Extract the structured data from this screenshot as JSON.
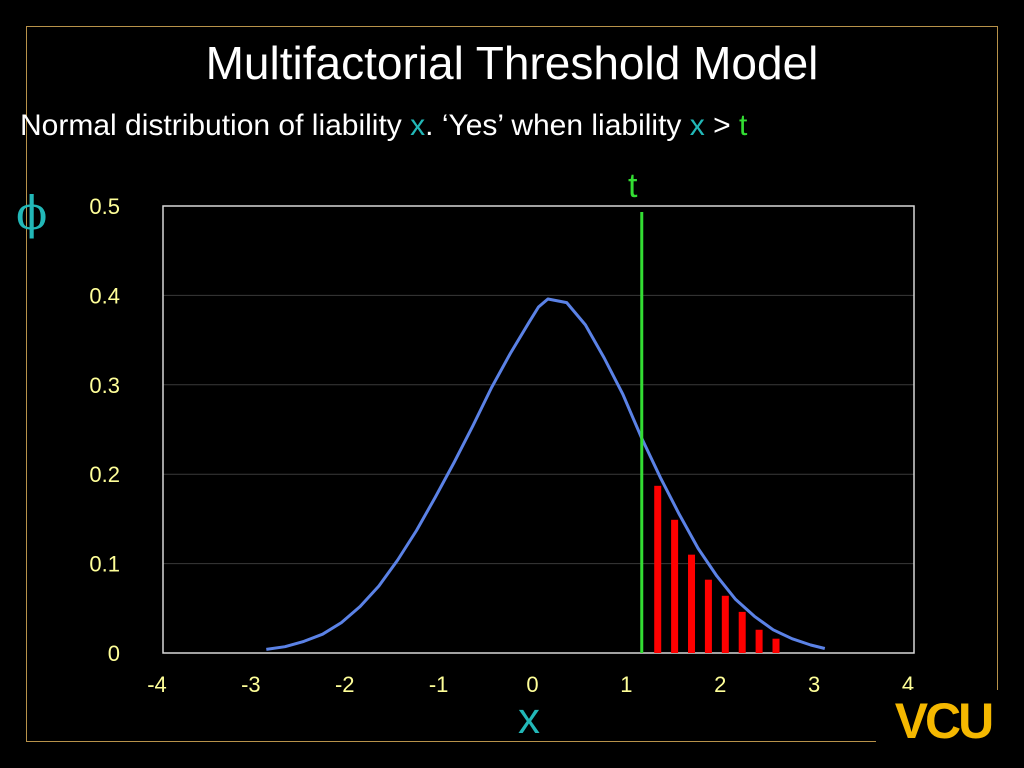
{
  "slide": {
    "title": "Multifactorial Threshold Model",
    "subtitle": {
      "part1": "Normal distribution of liability ",
      "var1": "x",
      "part2": ".  ‘Yes’ when liability ",
      "var2": "x",
      "part3": " > ",
      "var3": "t"
    },
    "logo_text": "VCU",
    "colors": {
      "background": "#000000",
      "curve": "#5b82e6",
      "threshold": "#33dd33",
      "bars": "#ff0000",
      "labels": "#ffff99",
      "logo": "#f5b800"
    }
  },
  "chart_data": {
    "type": "line",
    "title": "",
    "xlabel": "x",
    "ylabel": "ϕ",
    "xlim": [
      -4,
      4
    ],
    "ylim": [
      0,
      0.5
    ],
    "x_ticks": [
      "-4",
      "-3",
      "-2",
      "-1",
      "0",
      "1",
      "2",
      "3",
      "4"
    ],
    "y_ticks": [
      "0",
      "0.1",
      "0.2",
      "0.3",
      "0.4",
      "0.5"
    ],
    "grid": "horizontal",
    "series": [
      {
        "kind": "curve",
        "x": [
          -2.9,
          -2.7,
          -2.5,
          -2.3,
          -2.1,
          -1.9,
          -1.7,
          -1.5,
          -1.3,
          -1.1,
          -0.9,
          -0.7,
          -0.5,
          -0.3,
          -0.1,
          0.0,
          0.1,
          0.3,
          0.5,
          0.7,
          0.9,
          1.1,
          1.3,
          1.5,
          1.7,
          1.9,
          2.1,
          2.3,
          2.5,
          2.7,
          2.9,
          3.05
        ],
        "y": [
          0.004,
          0.007,
          0.013,
          0.021,
          0.034,
          0.052,
          0.075,
          0.104,
          0.137,
          0.174,
          0.213,
          0.254,
          0.297,
          0.335,
          0.37,
          0.387,
          0.396,
          0.392,
          0.367,
          0.33,
          0.289,
          0.24,
          0.196,
          0.155,
          0.117,
          0.086,
          0.06,
          0.041,
          0.026,
          0.016,
          0.009,
          0.005
        ]
      },
      {
        "kind": "threshold",
        "label": "t",
        "x": 1.1
      },
      {
        "kind": "bars",
        "x": [
          1.27,
          1.45,
          1.63,
          1.81,
          1.99,
          2.17,
          2.35,
          2.53
        ],
        "y": [
          0.187,
          0.149,
          0.11,
          0.082,
          0.064,
          0.046,
          0.026,
          0.016
        ]
      }
    ]
  }
}
